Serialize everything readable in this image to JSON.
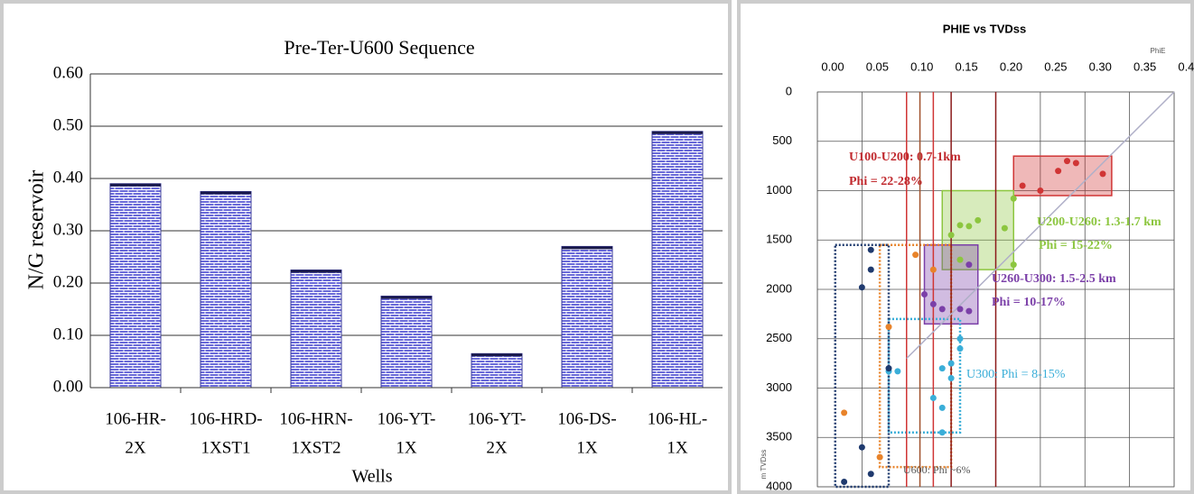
{
  "chart_data": [
    {
      "type": "bar",
      "title": "Pre-Ter-U600 Sequence",
      "ylabel": "N/G reservoir",
      "xlabel": "Wells",
      "categories": [
        [
          "106-HR-",
          "2X"
        ],
        [
          "106-HRD-",
          "1XST1"
        ],
        [
          "106-HRN-",
          "1XST2"
        ],
        [
          "106-YT-",
          "1X"
        ],
        [
          "106-YT-",
          "2X"
        ],
        [
          "106-DS-",
          "1X"
        ],
        [
          "106-HL-",
          "1X"
        ]
      ],
      "values": [
        0.39,
        0.375,
        0.225,
        0.175,
        0.065,
        0.27,
        0.49
      ],
      "color": "#5a5ad0",
      "ylim": [
        0,
        0.6
      ],
      "yticks": [
        {
          "value": 0,
          "label": "0.00"
        },
        {
          "value": 0.1,
          "label": "0.10"
        },
        {
          "value": 0.2,
          "label": "0.20"
        },
        {
          "value": 0.3,
          "label": "0.30"
        },
        {
          "value": 0.4,
          "label": "0.40"
        },
        {
          "value": 0.5,
          "label": "0.50"
        },
        {
          "value": 0.6,
          "label": "0.60"
        }
      ],
      "grid": true
    },
    {
      "type": "scatter",
      "title": "PHIE vs TVDss",
      "xlabel": "PhiE",
      "ylabel": "m TVDss",
      "xlim": [
        0,
        0.4
      ],
      "ylim": [
        0,
        4000
      ],
      "y_reversed": true,
      "xticks": [
        {
          "value": 0,
          "label": "0.00"
        },
        {
          "value": 0.05,
          "label": "0.05"
        },
        {
          "value": 0.1,
          "label": "0.10"
        },
        {
          "value": 0.15,
          "label": "0.15"
        },
        {
          "value": 0.2,
          "label": "0.20"
        },
        {
          "value": 0.25,
          "label": "0.25"
        },
        {
          "value": 0.3,
          "label": "0.30"
        },
        {
          "value": 0.35,
          "label": "0.35"
        },
        {
          "value": 0.4,
          "label": "0.40"
        }
      ],
      "yticks": [
        0,
        500,
        1000,
        1500,
        2000,
        2500,
        3000,
        3500,
        4000
      ],
      "grid": true,
      "series": [
        {
          "color": "#d03535",
          "x": [
            0.23,
            0.25,
            0.27,
            0.28,
            0.29,
            0.32
          ],
          "y": [
            950,
            1000,
            800,
            700,
            720,
            830
          ]
        },
        {
          "color": "#8cc63f",
          "x": [
            0.15,
            0.16,
            0.17,
            0.18,
            0.21,
            0.22,
            0.22,
            0.16
          ],
          "y": [
            1450,
            1350,
            1360,
            1300,
            1380,
            1080,
            1750,
            1700
          ]
        },
        {
          "color": "#7b3fa8",
          "x": [
            0.12,
            0.13,
            0.14,
            0.16,
            0.17,
            0.17
          ],
          "y": [
            2050,
            2150,
            2200,
            2200,
            2220,
            1750
          ]
        },
        {
          "color": "#3aaed8",
          "x": [
            0.08,
            0.09,
            0.14,
            0.15,
            0.16,
            0.16,
            0.15,
            0.13,
            0.14,
            0.14
          ],
          "y": [
            2830,
            2830,
            2800,
            2750,
            2600,
            2500,
            2900,
            3100,
            3200,
            3450
          ]
        },
        {
          "color": "#e8832a",
          "x": [
            0.11,
            0.13,
            0.03,
            0.07,
            0.08
          ],
          "y": [
            1650,
            1800,
            3250,
            3700,
            2380
          ]
        },
        {
          "color": "#1f3a6e",
          "x": [
            0.06,
            0.06,
            0.05,
            0.08,
            0.05,
            0.06,
            0.03
          ],
          "y": [
            1600,
            1800,
            1980,
            2800,
            3600,
            3870,
            3950
          ]
        }
      ],
      "regions": [
        {
          "color": "#d03535",
          "x": [
            0.22,
            0.33
          ],
          "y": [
            650,
            1050
          ],
          "style": "solid"
        },
        {
          "color": "#8cc63f",
          "x": [
            0.14,
            0.22
          ],
          "y": [
            1000,
            1800
          ],
          "style": "solid"
        },
        {
          "color": "#7b3fa8",
          "x": [
            0.12,
            0.18
          ],
          "y": [
            1550,
            2350
          ],
          "style": "solid"
        },
        {
          "color": "#3aaed8",
          "x": [
            0.08,
            0.16
          ],
          "y": [
            2300,
            3450
          ],
          "style": "dotted"
        },
        {
          "color": "#e8832a",
          "x": [
            0.07,
            0.15
          ],
          "y": [
            1550,
            3800
          ],
          "style": "dotted"
        },
        {
          "color": "#1f3a6e",
          "x": [
            0.02,
            0.08
          ],
          "y": [
            1550,
            4000
          ],
          "style": "dotted"
        }
      ],
      "vlines": [
        {
          "x": 0.1,
          "color": "#d03535"
        },
        {
          "x": 0.115,
          "color": "#a0522d"
        },
        {
          "x": 0.13,
          "color": "#d03535"
        },
        {
          "x": 0.15,
          "color": "#8b1a1a"
        },
        {
          "x": 0.2,
          "color": "#8b1a1a"
        }
      ],
      "trend": {
        "x": [
          0.1,
          0.4
        ],
        "y": [
          2700,
          0
        ],
        "color": "#b0b0c8"
      },
      "annotations": [
        {
          "text": "U100-U200: 0.7-1km",
          "color": "#c0282d"
        },
        {
          "text": "Phi = 22-28%",
          "color": "#c0282d"
        },
        {
          "text": "U200-U260: 1.3-1.7 km",
          "color": "#8cc63f"
        },
        {
          "text": "Phi = 15-22%",
          "color": "#8cc63f"
        },
        {
          "text": "U260-U300: 1.5-2.5 km",
          "color": "#7b3fa8"
        },
        {
          "text": "Phi = 10-17%",
          "color": "#7b3fa8"
        },
        {
          "text": "U300: Phi = 8-15%",
          "color": "#3aaed8"
        },
        {
          "text": "U600: Phi ~6%",
          "color": "#555"
        }
      ]
    }
  ]
}
